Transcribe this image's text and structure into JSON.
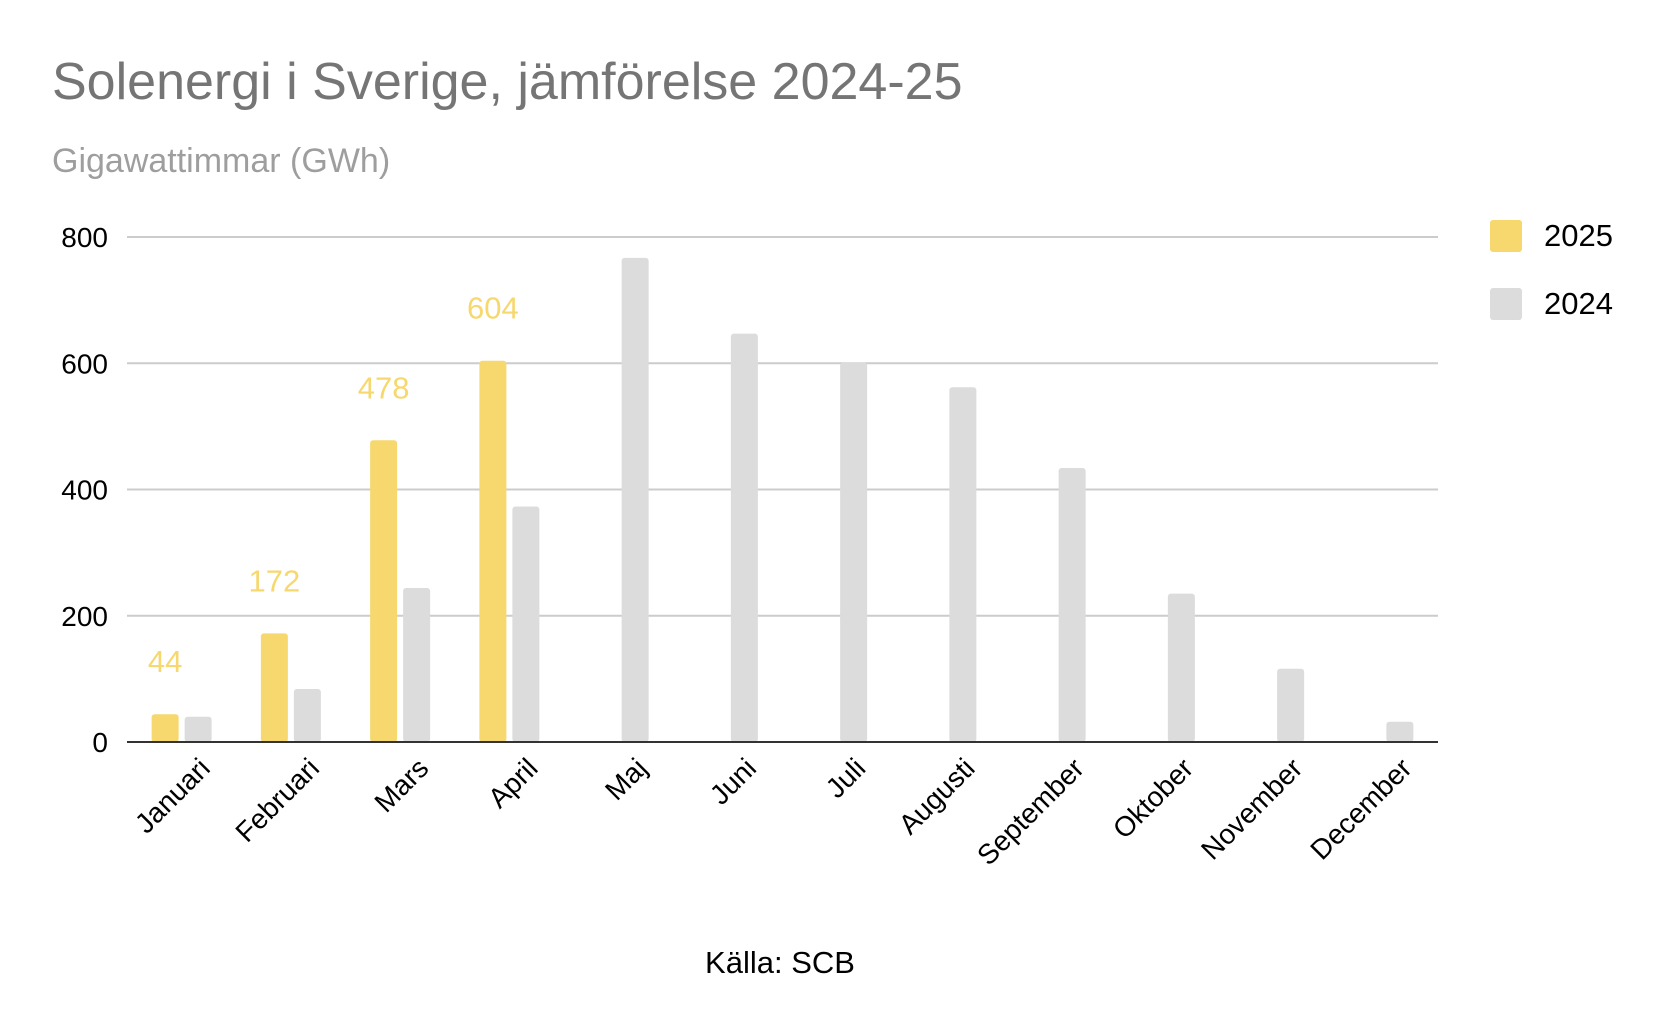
{
  "chart_data": {
    "type": "bar",
    "title": "Solenergi i Sverige, jämförelse 2024-25",
    "subtitle": "Gigawattimmar (GWh)",
    "source": "Källa: SCB",
    "categories": [
      "Januari",
      "Februari",
      "Mars",
      "April",
      "Maj",
      "Juni",
      "Juli",
      "Augusti",
      "September",
      "Oktober",
      "November",
      "December"
    ],
    "series": [
      {
        "name": "2025",
        "color": "#f6d86f",
        "values": [
          44,
          172,
          478,
          604,
          null,
          null,
          null,
          null,
          null,
          null,
          null,
          null
        ],
        "data_labels": [
          44,
          172,
          478,
          604,
          null,
          null,
          null,
          null,
          null,
          null,
          null,
          null
        ]
      },
      {
        "name": "2024",
        "color": "#dcdcdc",
        "values": [
          40,
          84,
          244,
          373,
          767,
          647,
          601,
          562,
          434,
          235,
          116,
          32
        ]
      }
    ],
    "y_ticks": [
      "0",
      "200",
      "400",
      "600",
      "800"
    ],
    "ylim": [
      0,
      800
    ],
    "grid": true,
    "legend_position": "right"
  }
}
